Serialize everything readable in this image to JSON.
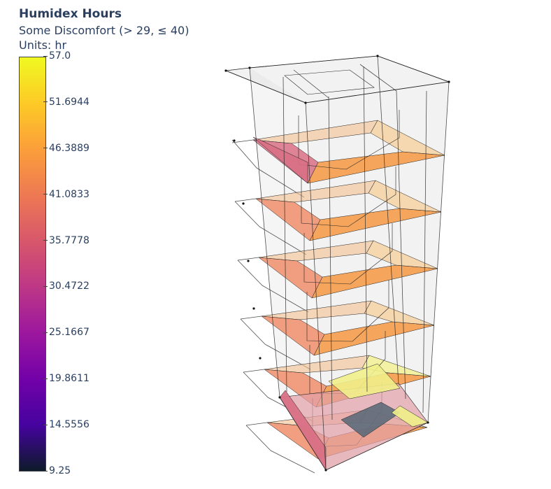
{
  "legend": {
    "title": "Humidex Hours",
    "subtitle": "Some Discomfort (> 29, ≤ 40)",
    "units": "Units: hr",
    "min": 9.25,
    "max": 57.0,
    "ticks": [
      "57.0",
      "51.6944",
      "46.3889",
      "41.0833",
      "35.7778",
      "30.4722",
      "25.1667",
      "19.8611",
      "14.5556",
      "9.25"
    ],
    "colorscale": [
      "#0d0887",
      "#46039f",
      "#7201a8",
      "#9c179e",
      "#bd3786",
      "#d8576b",
      "#ed7953",
      "#fb9f3a",
      "#fdca26",
      "#f0f921"
    ],
    "colorbar_bottom": "#0d1a2a"
  },
  "model": {
    "floors": 6,
    "floor_fill": "#f6a04f",
    "wall_left_fill": "#d97085",
    "core_fill": "#f1f08a",
    "ground_fill": "#556677",
    "glass_fill": "#d9d9d9",
    "line_color": "#222222"
  }
}
